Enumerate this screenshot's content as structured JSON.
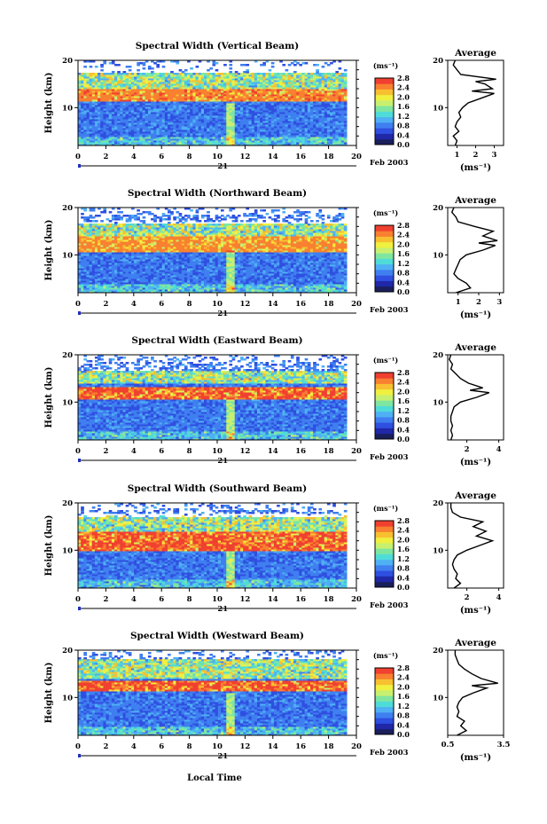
{
  "chart_data": {
    "type": "heatmap",
    "date_label": "Feb 2003",
    "day_label": "21",
    "xlabel": "Local Time",
    "ylabel": "Height (km)",
    "x_ticks": [
      "0",
      "2",
      "4",
      "6",
      "8",
      "10",
      "12",
      "14",
      "16",
      "18",
      "20"
    ],
    "y_ticks": [
      "10",
      "20"
    ],
    "xlim": [
      0,
      20
    ],
    "ylim": [
      2,
      20
    ],
    "data_end_hour": 19.3,
    "colorbar": {
      "unit_label": "(ms⁻¹)",
      "ticks": [
        "2.8",
        "2.4",
        "2.0",
        "1.6",
        "1.2",
        "0.8",
        "0.4",
        "0.0"
      ],
      "range": [
        0,
        2.8
      ],
      "colors": [
        "#1a1f5c",
        "#2028a8",
        "#2f4fe0",
        "#3f7ff0",
        "#4fb0f4",
        "#4fdcd8",
        "#7fe6a0",
        "#c8f070",
        "#f0f040",
        "#f8c030",
        "#f88030",
        "#f04030"
      ]
    },
    "average_title": "Average",
    "average_ylabel": "(ms⁻¹)",
    "panels": [
      {
        "title": "Spectral Width (Vertical Beam)",
        "avg_xticks": [
          "1",
          "2",
          "3"
        ],
        "avg_xlim": [
          0.5,
          3.5
        ],
        "profile": [
          [
            2,
            0.9
          ],
          [
            3,
            1.0
          ],
          [
            4,
            0.8
          ],
          [
            5,
            1.1
          ],
          [
            6,
            0.9
          ],
          [
            7,
            1.0
          ],
          [
            8,
            1.2
          ],
          [
            9,
            1.1
          ],
          [
            10,
            1.3
          ],
          [
            11,
            1.6
          ],
          [
            12,
            2.3
          ],
          [
            13,
            3.0
          ],
          [
            13.5,
            1.8
          ],
          [
            14,
            2.9
          ],
          [
            15,
            2.5
          ],
          [
            15.5,
            2.0
          ],
          [
            16,
            3.1
          ],
          [
            17,
            1.2
          ],
          [
            18,
            1.0
          ],
          [
            19,
            0.8
          ],
          [
            20,
            0.9
          ]
        ]
      },
      {
        "title": "Spectral Width (Northward Beam)",
        "avg_xticks": [
          "1",
          "2",
          "3"
        ],
        "avg_xlim": [
          0.5,
          3.2
        ],
        "profile": [
          [
            2,
            0.9
          ],
          [
            3,
            1.6
          ],
          [
            4,
            1.4
          ],
          [
            5,
            1.0
          ],
          [
            6,
            0.8
          ],
          [
            7,
            0.9
          ],
          [
            8,
            1.0
          ],
          [
            9,
            1.1
          ],
          [
            10,
            1.4
          ],
          [
            11,
            2.2
          ],
          [
            12,
            2.8
          ],
          [
            12.5,
            2.0
          ],
          [
            13,
            2.9
          ],
          [
            14,
            2.2
          ],
          [
            15,
            2.7
          ],
          [
            16,
            1.8
          ],
          [
            17,
            1.0
          ],
          [
            18,
            0.9
          ],
          [
            19,
            0.7
          ],
          [
            20,
            0.8
          ]
        ]
      },
      {
        "title": "Spectral Width (Eastward Beam)",
        "avg_xticks": [
          "2",
          "4"
        ],
        "avg_xlim": [
          0.8,
          4.3
        ],
        "profile": [
          [
            2,
            1.0
          ],
          [
            3,
            1.1
          ],
          [
            4,
            1.0
          ],
          [
            5,
            1.1
          ],
          [
            6,
            1.0
          ],
          [
            7,
            1.0
          ],
          [
            8,
            1.1
          ],
          [
            9,
            1.2
          ],
          [
            10,
            1.6
          ],
          [
            11,
            2.6
          ],
          [
            12,
            3.4
          ],
          [
            12.5,
            2.2
          ],
          [
            13,
            3.0
          ],
          [
            14,
            2.1
          ],
          [
            15,
            1.6
          ],
          [
            16,
            1.3
          ],
          [
            17,
            1.0
          ],
          [
            18,
            1.1
          ],
          [
            19,
            0.9
          ],
          [
            20,
            1.0
          ]
        ]
      },
      {
        "title": "Spectral Width (Southward Beam)",
        "avg_xticks": [
          "2",
          "4"
        ],
        "avg_xlim": [
          0.8,
          4.3
        ],
        "profile": [
          [
            2,
            1.2
          ],
          [
            3,
            1.6
          ],
          [
            4,
            1.3
          ],
          [
            5,
            1.4
          ],
          [
            6,
            1.2
          ],
          [
            7,
            1.1
          ],
          [
            8,
            1.2
          ],
          [
            9,
            1.4
          ],
          [
            10,
            2.0
          ],
          [
            11,
            2.8
          ],
          [
            12,
            3.6
          ],
          [
            13,
            2.6
          ],
          [
            14,
            3.2
          ],
          [
            15,
            2.4
          ],
          [
            16,
            3.0
          ],
          [
            17,
            1.6
          ],
          [
            18,
            1.1
          ],
          [
            19,
            1.0
          ],
          [
            20,
            1.0
          ]
        ]
      },
      {
        "title": "Spectral Width (Westward Beam)",
        "avg_xticks": [
          "0.5",
          "3.5"
        ],
        "avg_xlim": [
          0.5,
          3.5
        ],
        "profile": [
          [
            2,
            1.0
          ],
          [
            3,
            1.5
          ],
          [
            4,
            1.2
          ],
          [
            5,
            1.4
          ],
          [
            6,
            1.0
          ],
          [
            7,
            1.1
          ],
          [
            8,
            1.0
          ],
          [
            9,
            1.1
          ],
          [
            10,
            1.3
          ],
          [
            11,
            1.9
          ],
          [
            12,
            2.6
          ],
          [
            12.5,
            1.8
          ],
          [
            13,
            3.2
          ],
          [
            14,
            2.3
          ],
          [
            15,
            1.8
          ],
          [
            16,
            1.4
          ],
          [
            17,
            1.1
          ],
          [
            18,
            1.0
          ],
          [
            19,
            0.9
          ],
          [
            20,
            0.9
          ]
        ]
      }
    ]
  }
}
